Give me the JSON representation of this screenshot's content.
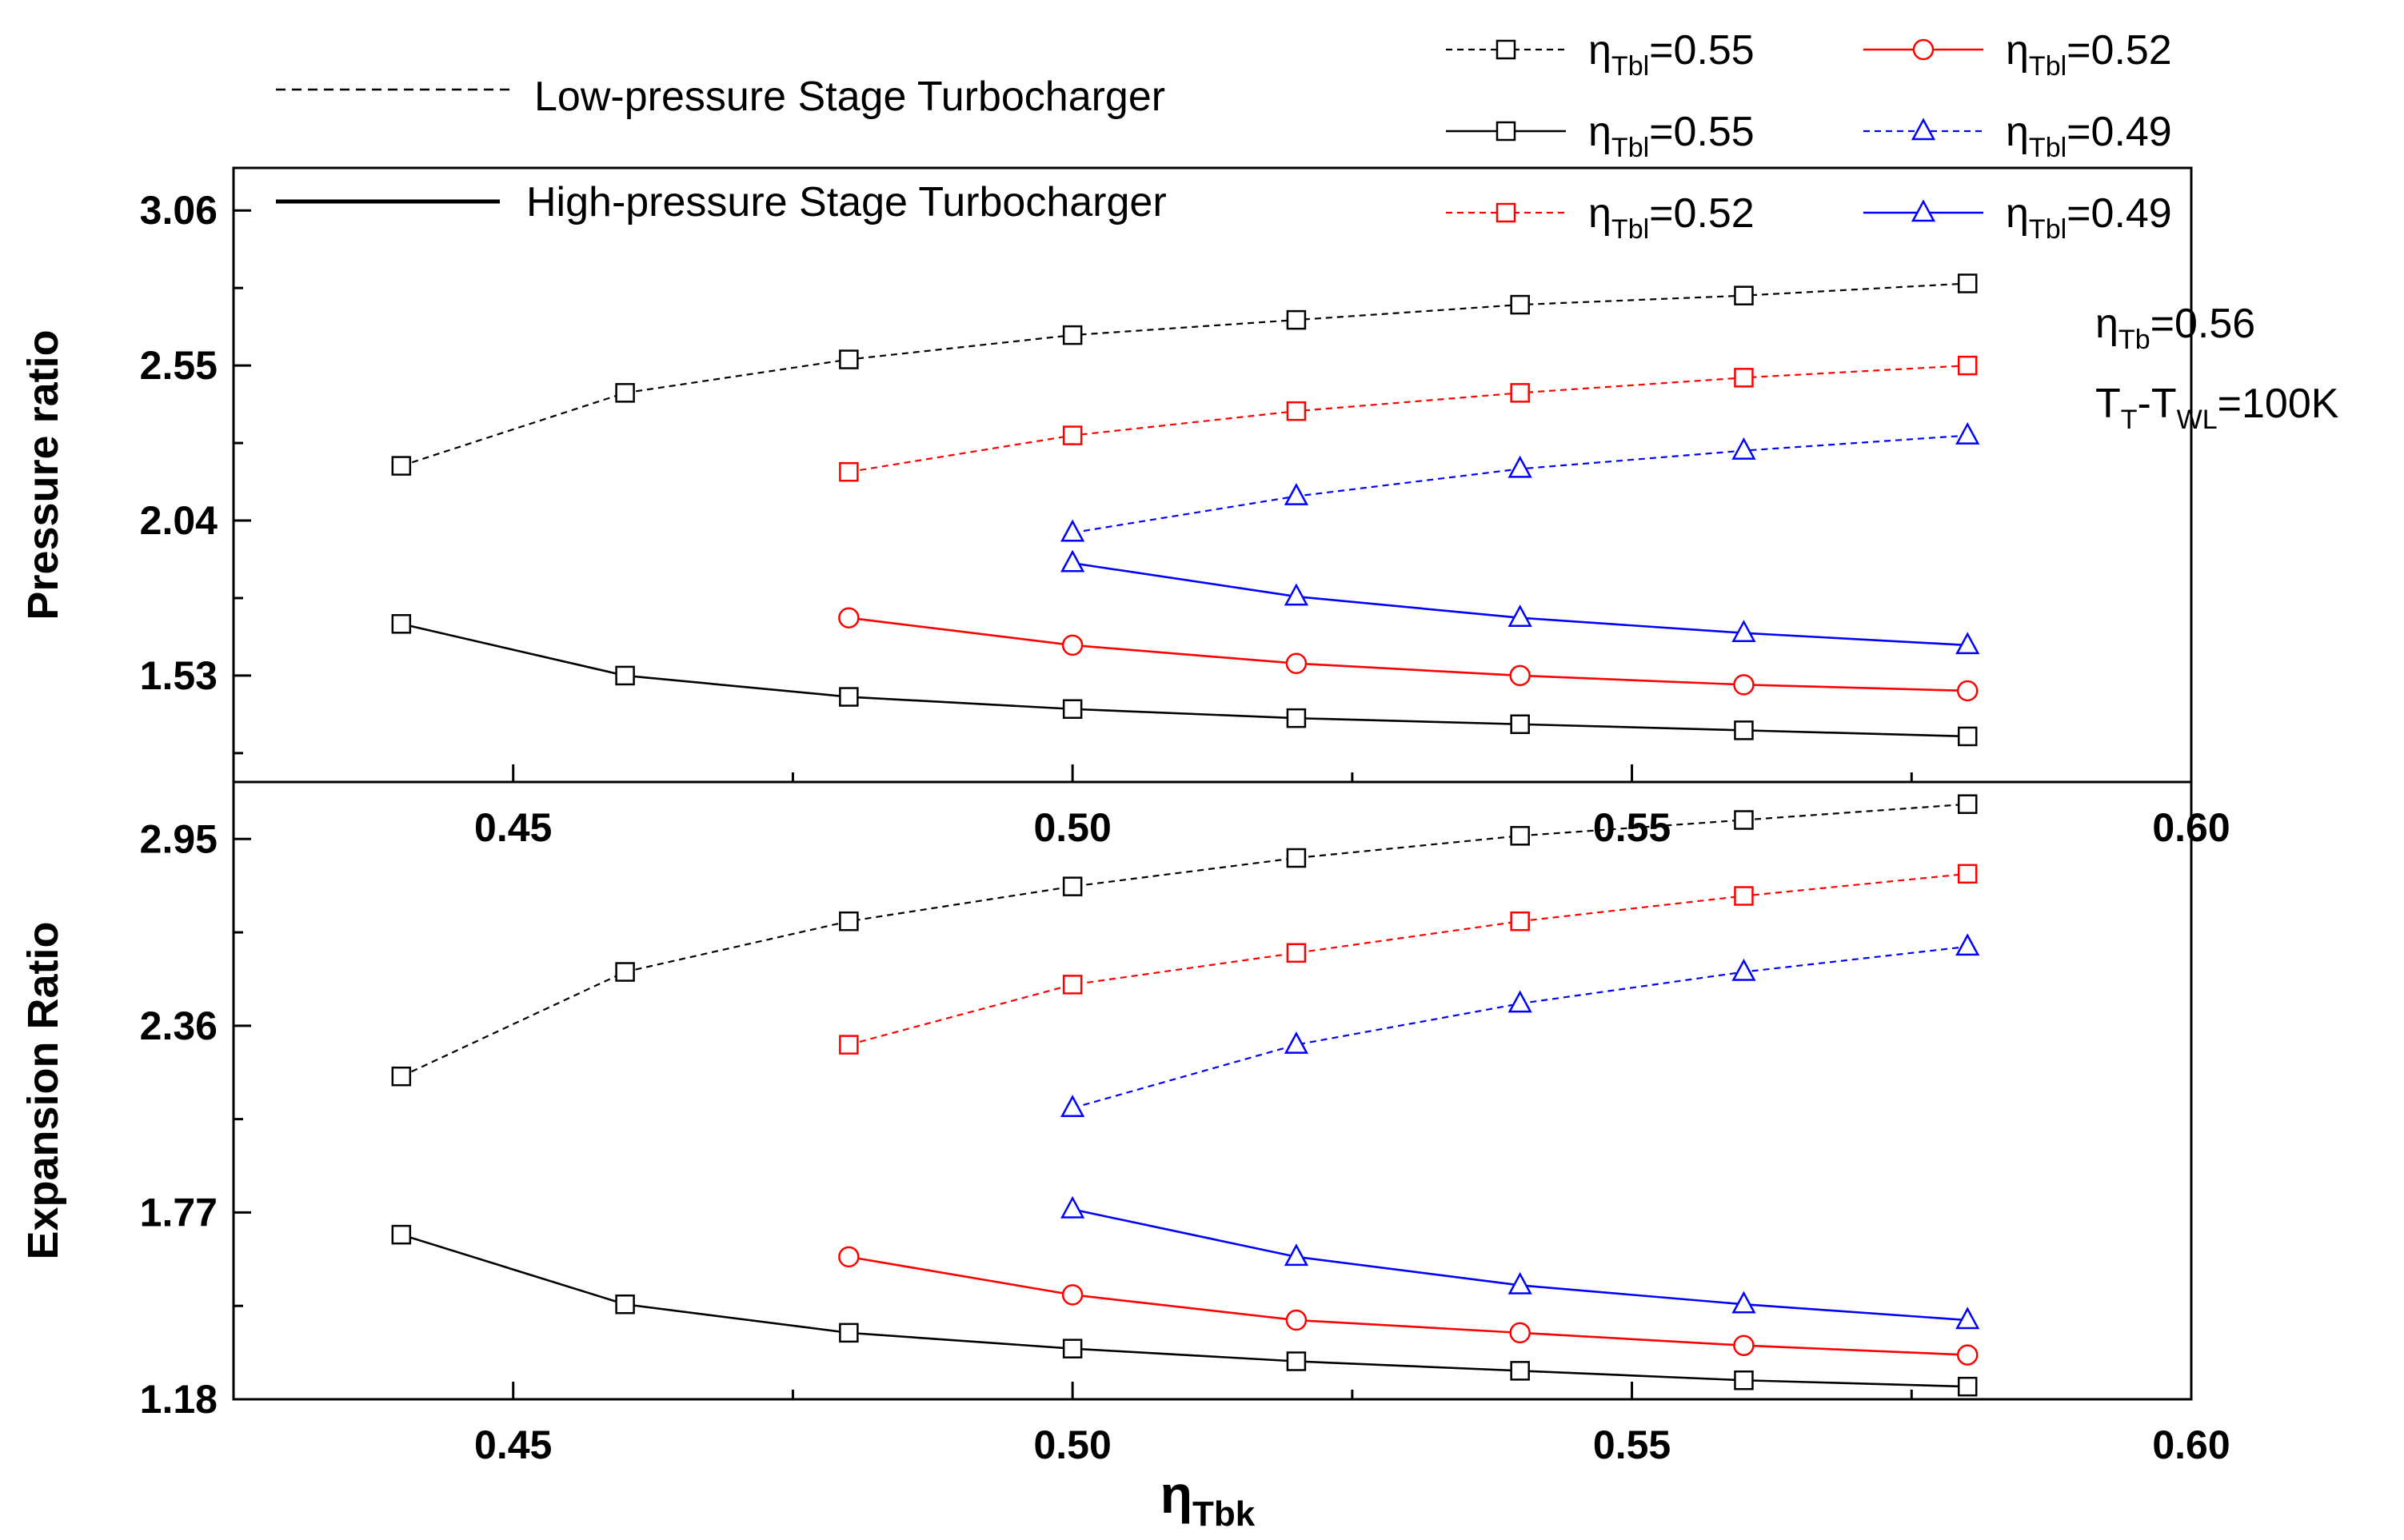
{
  "legend": {
    "lp_label": "Low-pressure Stage Turbocharger",
    "hp_label": "High-pressure Stage Turbocharger",
    "entries": [
      {
        "sym": "η",
        "sub": "Tbl",
        "val": "=0.55",
        "color": "#000000",
        "dashed": true,
        "marker": "square"
      },
      {
        "sym": "η",
        "sub": "Tbl",
        "val": "=0.55",
        "color": "#000000",
        "dashed": false,
        "marker": "square"
      },
      {
        "sym": "η",
        "sub": "Tbl",
        "val": "=0.52",
        "color": "#ff0000",
        "dashed": true,
        "marker": "square"
      },
      {
        "sym": "η",
        "sub": "Tbl",
        "val": "=0.52",
        "color": "#ff0000",
        "dashed": false,
        "marker": "circle"
      },
      {
        "sym": "η",
        "sub": "Tbl",
        "val": "=0.49",
        "color": "#0000ff",
        "dashed": true,
        "marker": "triangle"
      },
      {
        "sym": "η",
        "sub": "Tbl",
        "val": "=0.49",
        "color": "#0000ff",
        "dashed": false,
        "marker": "triangle"
      }
    ]
  },
  "annotation": {
    "line1_sym": "η",
    "line1_sub": "Tb",
    "line1_val": "=0.56",
    "line2_a": "T",
    "line2_a_sub": "T",
    "line2_b": "-T",
    "line2_b_sub": "WL",
    "line2_val": "=100K"
  },
  "chart_data": [
    {
      "type": "line",
      "ylabel": "Pressure  ratio",
      "xlabel": "",
      "xlim": [
        0.425,
        0.6
      ],
      "ylim": [
        1.18,
        3.2
      ],
      "x_ticks": [
        "0.45",
        "0.50",
        "0.55",
        "0.60"
      ],
      "y_ticks": [
        "1.53",
        "2.04",
        "2.55",
        "3.06"
      ],
      "series": [
        {
          "group": "low",
          "eta_tbl": "0.55",
          "color": "#000000",
          "dashed": true,
          "marker": "square",
          "x": [
            0.44,
            0.46,
            0.48,
            0.5,
            0.52,
            0.54,
            0.56,
            0.58
          ],
          "y": [
            2.22,
            2.46,
            2.57,
            2.65,
            2.7,
            2.75,
            2.78,
            2.82
          ]
        },
        {
          "group": "low",
          "eta_tbl": "0.52",
          "color": "#ff0000",
          "dashed": true,
          "marker": "square",
          "x": [
            0.48,
            0.5,
            0.52,
            0.54,
            0.56,
            0.58
          ],
          "y": [
            2.2,
            2.32,
            2.4,
            2.46,
            2.51,
            2.55
          ]
        },
        {
          "group": "low",
          "eta_tbl": "0.49",
          "color": "#0000ff",
          "dashed": true,
          "marker": "triangle",
          "x": [
            0.5,
            0.52,
            0.54,
            0.56,
            0.58
          ],
          "y": [
            2.0,
            2.12,
            2.21,
            2.27,
            2.32
          ]
        },
        {
          "group": "high",
          "eta_tbl": "0.55",
          "color": "#000000",
          "dashed": false,
          "marker": "square",
          "x": [
            0.44,
            0.46,
            0.48,
            0.5,
            0.52,
            0.54,
            0.56,
            0.58
          ],
          "y": [
            1.7,
            1.53,
            1.46,
            1.42,
            1.39,
            1.37,
            1.35,
            1.33
          ]
        },
        {
          "group": "high",
          "eta_tbl": "0.52",
          "color": "#ff0000",
          "dashed": false,
          "marker": "circle",
          "x": [
            0.48,
            0.5,
            0.52,
            0.54,
            0.56,
            0.58
          ],
          "y": [
            1.72,
            1.63,
            1.57,
            1.53,
            1.5,
            1.48
          ]
        },
        {
          "group": "high",
          "eta_tbl": "0.49",
          "color": "#0000ff",
          "dashed": false,
          "marker": "triangle",
          "x": [
            0.5,
            0.52,
            0.54,
            0.56,
            0.58
          ],
          "y": [
            1.9,
            1.79,
            1.72,
            1.67,
            1.63
          ]
        }
      ]
    },
    {
      "type": "line",
      "ylabel": "Expansion Ratio",
      "xlabel_sym": "η",
      "xlabel_sub": "Tbk",
      "xlim": [
        0.425,
        0.6
      ],
      "ylim": [
        1.18,
        3.13
      ],
      "x_ticks": [
        "0.45",
        "0.50",
        "0.55",
        "0.60"
      ],
      "y_ticks": [
        "1.18",
        "1.77",
        "2.36",
        "2.95"
      ],
      "series": [
        {
          "group": "low",
          "eta_tbl": "0.55",
          "color": "#000000",
          "dashed": true,
          "marker": "square",
          "x": [
            0.44,
            0.46,
            0.48,
            0.5,
            0.52,
            0.54,
            0.56,
            0.58
          ],
          "y": [
            2.2,
            2.53,
            2.69,
            2.8,
            2.89,
            2.96,
            3.01,
            3.06
          ]
        },
        {
          "group": "low",
          "eta_tbl": "0.52",
          "color": "#ff0000",
          "dashed": true,
          "marker": "square",
          "x": [
            0.48,
            0.5,
            0.52,
            0.54,
            0.56,
            0.58
          ],
          "y": [
            2.3,
            2.49,
            2.59,
            2.69,
            2.77,
            2.84
          ]
        },
        {
          "group": "low",
          "eta_tbl": "0.49",
          "color": "#0000ff",
          "dashed": true,
          "marker": "triangle",
          "x": [
            0.5,
            0.52,
            0.54,
            0.56,
            0.58
          ],
          "y": [
            2.1,
            2.3,
            2.43,
            2.53,
            2.61
          ]
        },
        {
          "group": "high",
          "eta_tbl": "0.55",
          "color": "#000000",
          "dashed": false,
          "marker": "square",
          "x": [
            0.44,
            0.46,
            0.48,
            0.5,
            0.52,
            0.54,
            0.56,
            0.58
          ],
          "y": [
            1.7,
            1.48,
            1.39,
            1.34,
            1.3,
            1.27,
            1.24,
            1.22
          ]
        },
        {
          "group": "high",
          "eta_tbl": "0.52",
          "color": "#ff0000",
          "dashed": false,
          "marker": "circle",
          "x": [
            0.48,
            0.5,
            0.52,
            0.54,
            0.56,
            0.58
          ],
          "y": [
            1.63,
            1.51,
            1.43,
            1.39,
            1.35,
            1.32
          ]
        },
        {
          "group": "high",
          "eta_tbl": "0.49",
          "color": "#0000ff",
          "dashed": false,
          "marker": "triangle",
          "x": [
            0.5,
            0.52,
            0.54,
            0.56,
            0.58
          ],
          "y": [
            1.78,
            1.63,
            1.54,
            1.48,
            1.43
          ]
        }
      ]
    }
  ]
}
